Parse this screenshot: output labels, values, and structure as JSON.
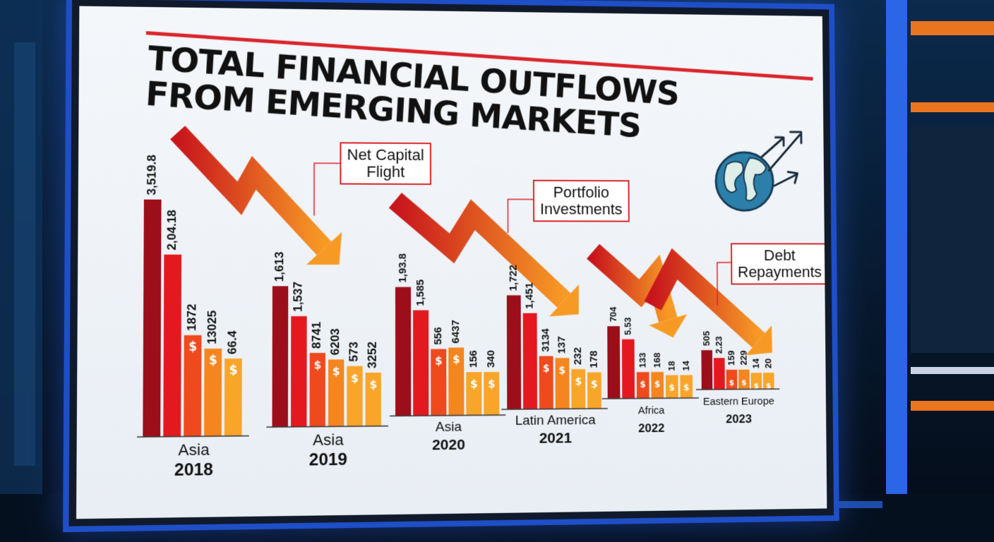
{
  "headline": "TOTAL FINANCIAL OUTFLOWS\nFROM EMERGING MARKETS",
  "callouts": [
    {
      "text": "Net Capital\nFlight"
    },
    {
      "text": "Portfolio\nInvestments"
    },
    {
      "text": "Debt\nRepayments"
    }
  ],
  "colors": {
    "red_line": "#d9252b",
    "screen_bg": "#eef2f6",
    "series": [
      "#9c0f1a",
      "#e3191f",
      "#ef4a1d",
      "#f5851f",
      "#f8a52a"
    ],
    "arrow_start": "#c8151c",
    "arrow_end": "#f79a25"
  },
  "icons": {
    "globe": "globe-icon",
    "arrows": "outflow-arrows-icon",
    "bar_marker": "dollar-sign-icon"
  },
  "chart_data": {
    "type": "bar",
    "title": "TOTAL FINANCIAL OUTFLOWS FROM EMERGING MARKETS",
    "groups": [
      {
        "region": "Asia",
        "year": "2018",
        "labels": [
          "3,519.8",
          "2,04.18",
          "1872",
          "13025",
          "66.4"
        ],
        "values": [
          3519.8,
          2700,
          1500,
          1300,
          1150
        ]
      },
      {
        "region": "Asia",
        "year": "2019",
        "labels": [
          "1,613",
          "1,537",
          "8741",
          "6203",
          "573",
          "3252"
        ],
        "values": [
          2100,
          1650,
          1100,
          1000,
          900,
          800
        ]
      },
      {
        "region": "Asia",
        "year": "2020",
        "labels": [
          "1,93.8",
          "1,585",
          "556",
          "6437",
          "156",
          "340"
        ],
        "values": [
          1935,
          1585,
          1000,
          1020,
          650,
          650
        ]
      },
      {
        "region": "Latin America",
        "year": "2021",
        "labels": [
          "1,722",
          "1,451",
          "3134",
          "137",
          "232",
          "178"
        ],
        "values": [
          1722,
          1451,
          800,
          770,
          600,
          550
        ]
      },
      {
        "region": "Africa",
        "year": "2022",
        "labels": [
          "704",
          "5.53",
          "133",
          "168",
          "18",
          "14"
        ],
        "values": [
          1100,
          900,
          400,
          400,
          350,
          350
        ]
      },
      {
        "region": "Eastern Europe",
        "year": "2023",
        "labels": [
          "505",
          "2.23",
          "159",
          "229",
          "14",
          "20"
        ],
        "values": [
          600,
          480,
          300,
          300,
          250,
          250
        ]
      }
    ],
    "legend": "none",
    "grid": false
  }
}
